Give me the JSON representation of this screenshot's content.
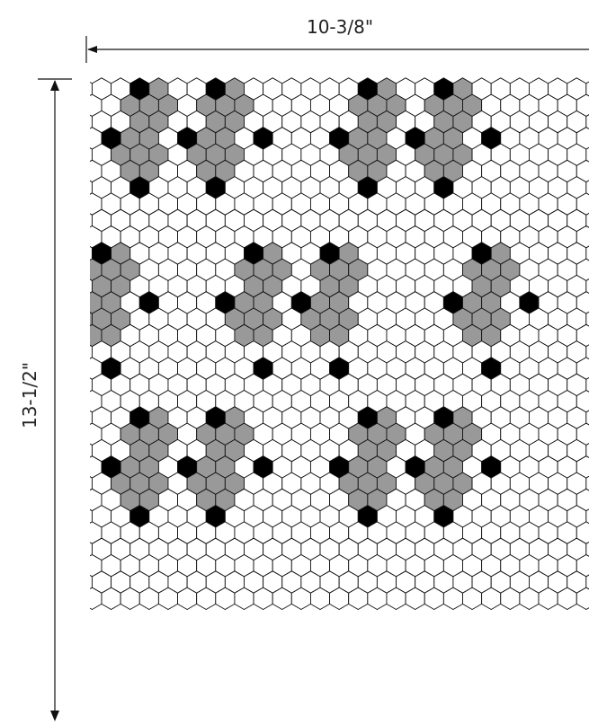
{
  "width_label": "10-3/8\"",
  "height_label": "13-1/2\"",
  "colors": {
    "white_tile": "#ffffff",
    "gray_tile": "#999999",
    "black_tile": "#000000",
    "grout_line": "#111111"
  },
  "pattern": {
    "black_tiles": [
      [
        0,
        2
      ],
      [
        0,
        6
      ],
      [
        0,
        14
      ],
      [
        0,
        18
      ],
      [
        3,
        0
      ],
      [
        3,
        4
      ],
      [
        3,
        8
      ],
      [
        3,
        12
      ],
      [
        3,
        16
      ],
      [
        3,
        20
      ],
      [
        6,
        2
      ],
      [
        6,
        6
      ],
      [
        6,
        14
      ],
      [
        6,
        18
      ],
      [
        10,
        0
      ],
      [
        10,
        8
      ],
      [
        10,
        12
      ],
      [
        10,
        20
      ],
      [
        13,
        2
      ],
      [
        13,
        6
      ],
      [
        13,
        10
      ],
      [
        13,
        18
      ],
      [
        13,
        22
      ],
      [
        17,
        0
      ],
      [
        17,
        8
      ],
      [
        17,
        12
      ],
      [
        17,
        20
      ],
      [
        20,
        2
      ],
      [
        20,
        6
      ],
      [
        20,
        14
      ],
      [
        20,
        18
      ],
      [
        23,
        0
      ],
      [
        23,
        4
      ],
      [
        23,
        8
      ],
      [
        23,
        12
      ],
      [
        23,
        16
      ],
      [
        23,
        20
      ],
      [
        26,
        2
      ],
      [
        26,
        6
      ],
      [
        26,
        14
      ],
      [
        26,
        18
      ]
    ],
    "gray_clusters": [
      [
        1,
        2
      ],
      [
        1,
        6
      ],
      [
        1,
        14
      ],
      [
        1,
        18
      ],
      [
        4,
        2
      ],
      [
        4,
        6
      ],
      [
        4,
        14
      ],
      [
        4,
        18
      ],
      [
        11,
        0
      ],
      [
        11,
        8
      ],
      [
        11,
        12
      ],
      [
        11,
        20
      ],
      [
        14,
        0
      ],
      [
        14,
        8
      ],
      [
        14,
        12
      ],
      [
        14,
        20
      ],
      [
        21,
        2
      ],
      [
        21,
        6
      ],
      [
        21,
        14
      ],
      [
        21,
        18
      ],
      [
        24,
        2
      ],
      [
        24,
        6
      ],
      [
        24,
        14
      ],
      [
        24,
        18
      ]
    ]
  }
}
